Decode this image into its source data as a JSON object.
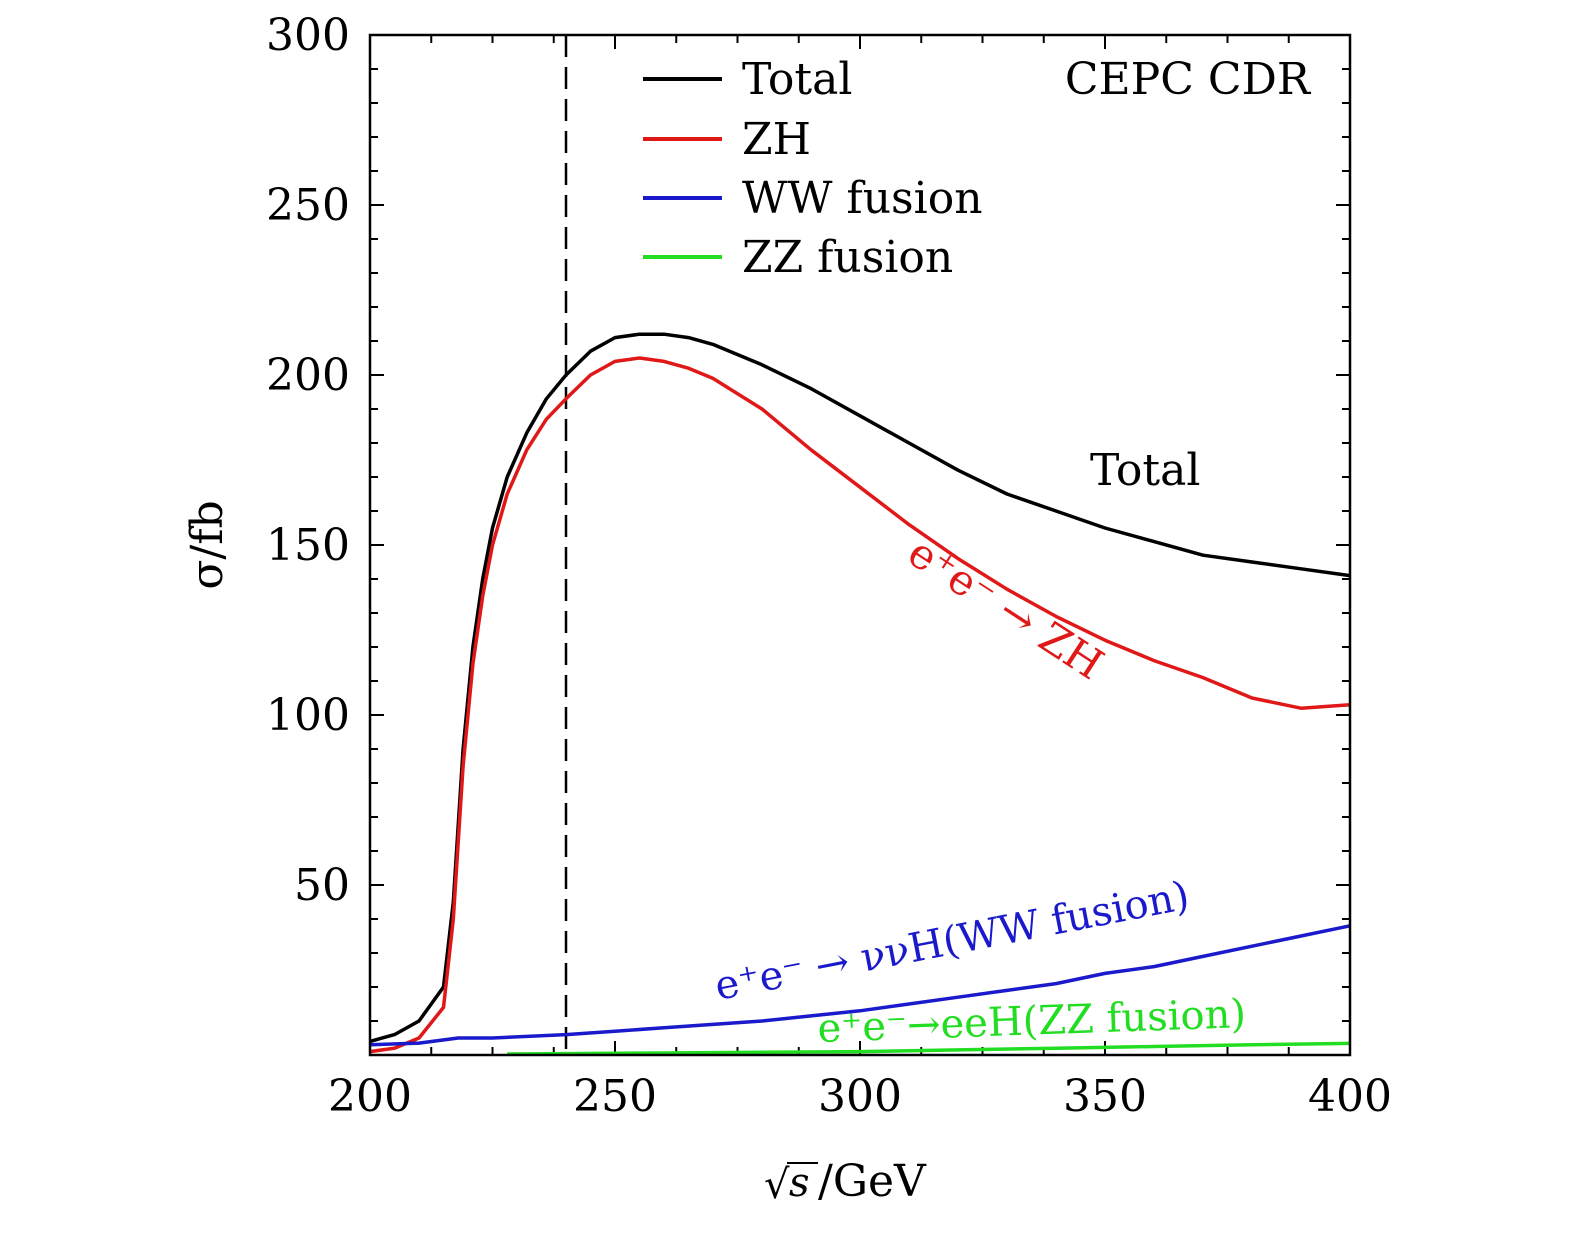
{
  "chart_data": {
    "type": "line",
    "annotation": "CEPC CDR",
    "xlabel_sqrt": "√s",
    "xlabel_var": "s",
    "xlabel_unit": "/GeV",
    "ylabel": "σ/fb",
    "xlim": [
      200,
      400
    ],
    "ylim": [
      0,
      300
    ],
    "xticks": [
      200,
      250,
      300,
      350,
      400
    ],
    "yticks": [
      50,
      100,
      150,
      200,
      250,
      300
    ],
    "grid": false,
    "legend_position": "top-right",
    "reference_line": {
      "x": 240,
      "style": "dashed"
    },
    "series": [
      {
        "name": "Total",
        "color": "#000000",
        "x": [
          200,
          205,
          210,
          215,
          217,
          219,
          221,
          223,
          225,
          228,
          232,
          236,
          240,
          245,
          250,
          255,
          260,
          265,
          270,
          280,
          290,
          300,
          310,
          320,
          330,
          340,
          350,
          360,
          370,
          380,
          390,
          400
        ],
        "y": [
          4,
          6,
          10,
          20,
          45,
          90,
          120,
          140,
          155,
          170,
          183,
          193,
          200,
          207,
          211,
          212,
          212,
          211,
          209,
          203,
          196,
          188,
          180,
          172,
          165,
          160,
          155,
          151,
          147,
          145,
          143,
          141
        ]
      },
      {
        "name": "ZH",
        "color": "#e01818",
        "x": [
          200,
          205,
          210,
          215,
          217,
          219,
          221,
          223,
          225,
          228,
          232,
          236,
          240,
          245,
          250,
          255,
          260,
          265,
          270,
          280,
          290,
          300,
          310,
          320,
          330,
          340,
          350,
          360,
          370,
          380,
          390,
          400
        ],
        "y": [
          1,
          2,
          5,
          14,
          40,
          85,
          115,
          135,
          150,
          165,
          178,
          187,
          193,
          200,
          204,
          205,
          204,
          202,
          199,
          190,
          178,
          167,
          156,
          146,
          137,
          129,
          122,
          116,
          111,
          105,
          102,
          103
        ]
      },
      {
        "name": "WW fusion",
        "color": "#1a1acc",
        "x": [
          200,
          210,
          218,
          225,
          240,
          250,
          260,
          270,
          280,
          290,
          300,
          310,
          320,
          330,
          340,
          350,
          360,
          370,
          380,
          390,
          400
        ],
        "y": [
          3,
          3.5,
          5,
          5,
          6,
          7,
          8,
          9,
          10,
          11.5,
          13,
          15,
          17,
          19,
          21,
          24,
          26,
          29,
          32,
          35,
          38
        ]
      },
      {
        "name": "ZZ fusion",
        "color": "#22dd22",
        "x": [
          228,
          240,
          260,
          280,
          300,
          320,
          340,
          360,
          380,
          400
        ],
        "y": [
          0.3,
          0.4,
          0.6,
          0.8,
          1.0,
          1.5,
          2.0,
          2.5,
          3.0,
          3.4
        ]
      }
    ],
    "curve_labels": [
      {
        "text": "Total",
        "color": "#000000"
      },
      {
        "text": "e⁺e⁻ → ZH",
        "color": "#e01818"
      },
      {
        "text": "e⁺e⁻ → ννH(WW fusion)",
        "color": "#1a1acc"
      },
      {
        "text": "e⁺e⁻→eeH(ZZ fusion)",
        "color": "#22dd22"
      }
    ]
  }
}
